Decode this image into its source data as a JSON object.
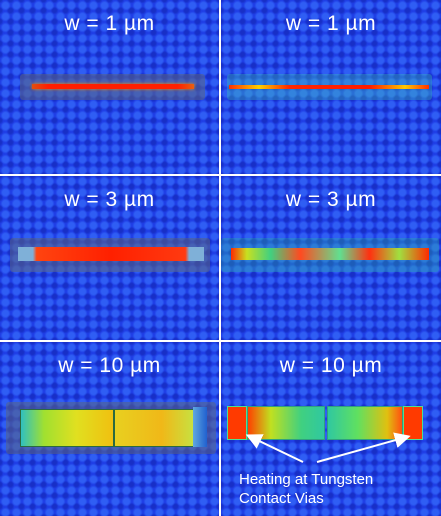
{
  "panels": [
    {
      "label": "w = 1 µm"
    },
    {
      "label": "w = 1 µm"
    },
    {
      "label": "w = 3 µm"
    },
    {
      "label": "w = 3 µm"
    },
    {
      "label": "w = 10 µm"
    },
    {
      "label": "w = 10 µm"
    }
  ],
  "annotation": {
    "line1": "Heating at Tungsten",
    "line2": "Contact Vias"
  }
}
